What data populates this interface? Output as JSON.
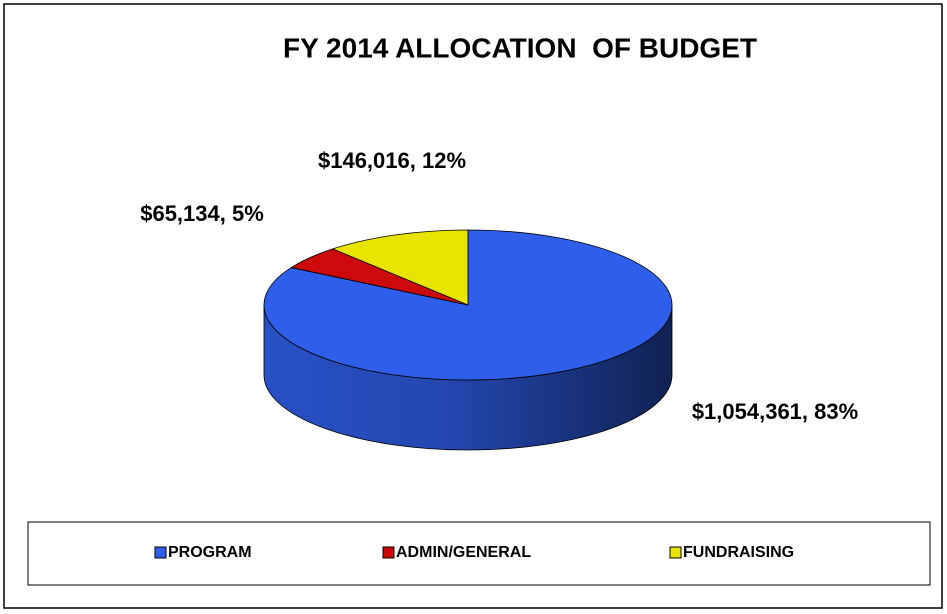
{
  "chart_data": {
    "type": "pie3d",
    "title": "FY 2014 ALLOCATION  OF BUDGET",
    "categories": [
      "PROGRAM",
      "ADMIN/GENERAL",
      "FUNDRAISING"
    ],
    "values": [
      1054361,
      65134,
      146016
    ],
    "value_labels": [
      "$1,054,361, 83%",
      "$65,134, 5%",
      "$146,016, 12%"
    ],
    "colors": [
      "#2f5fea",
      "#cc0a0a",
      "#e8e400"
    ],
    "legend": "bottom"
  }
}
